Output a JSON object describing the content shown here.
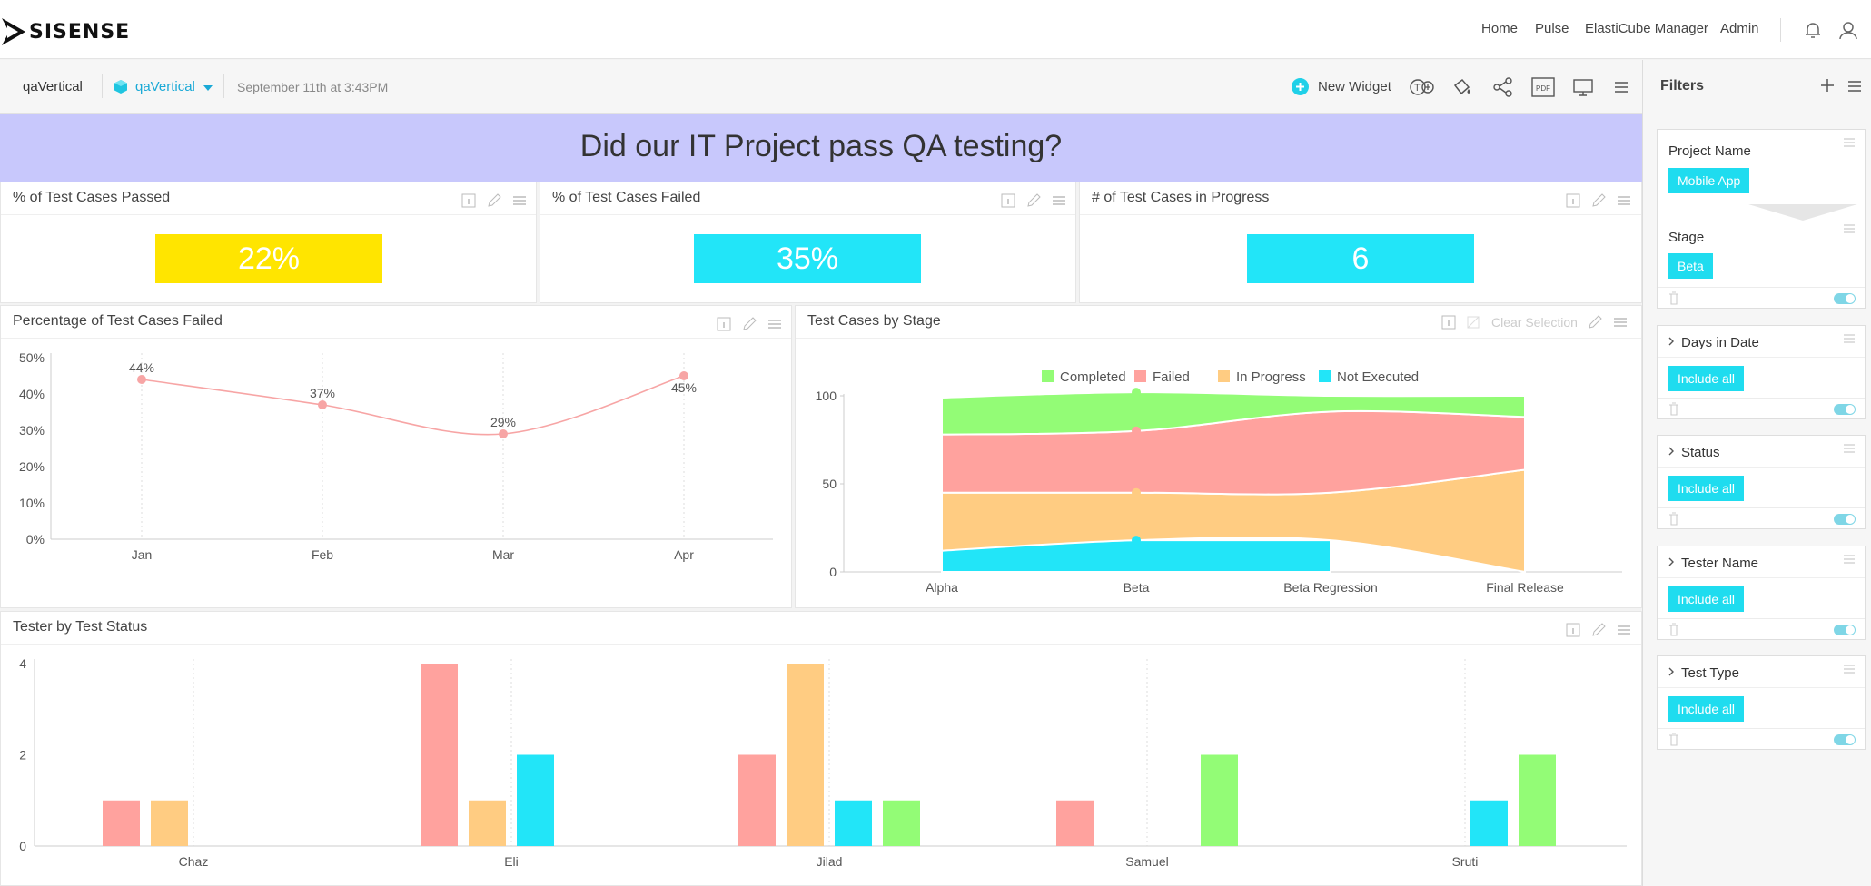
{
  "brand": {
    "name": "SISENSE"
  },
  "nav": {
    "items": [
      "Home",
      "Pulse",
      "ElastiCube Manager",
      "Admin"
    ]
  },
  "dashboard": {
    "name": "qaVertical",
    "datasource": "qaVertical",
    "timestamp": "September 11th at 3:43PM",
    "new_widget_label": "New Widget",
    "banner_title": "Did our IT Project pass QA testing?"
  },
  "kpis": [
    {
      "title": "% of Test Cases Passed",
      "value": "22%",
      "color": "#ffe500"
    },
    {
      "title": "% of Test Cases Failed",
      "value": "35%",
      "color": "#22e5f8"
    },
    {
      "title": "# of Test Cases in Progress",
      "value": "6",
      "color": "#22e5f8"
    }
  ],
  "line_widget": {
    "title": "Percentage of Test Cases Failed"
  },
  "area_widget": {
    "title": "Test Cases by Stage",
    "clear_selection_label": "Clear Selection"
  },
  "bar_widget": {
    "title": "Tester by Test Status"
  },
  "chart_data": [
    {
      "type": "line",
      "title": "Percentage of Test Cases Failed",
      "categories": [
        "Jan",
        "Feb",
        "Mar",
        "Apr"
      ],
      "values": [
        44,
        37,
        29,
        45
      ],
      "data_labels": [
        "44%",
        "37%",
        "29%",
        "45%"
      ],
      "y_ticks": [
        "0%",
        "10%",
        "20%",
        "30%",
        "40%",
        "50%"
      ],
      "ylim": [
        0,
        50
      ],
      "color": "#f7a5a5"
    },
    {
      "type": "area",
      "title": "Test Cases by Stage",
      "categories": [
        "Alpha",
        "Beta",
        "Beta Regression",
        "Final Release"
      ],
      "stacked": true,
      "ylim": [
        0,
        100
      ],
      "y_ticks": [
        "0",
        "50",
        "100"
      ],
      "legend_position": "top",
      "series": [
        {
          "name": "Completed",
          "color": "#93fc76",
          "values": [
            21,
            22,
            9,
            12
          ]
        },
        {
          "name": "Failed",
          "color": "#ffa29e",
          "values": [
            33,
            35,
            46,
            30
          ]
        },
        {
          "name": "In Progress",
          "color": "#ffcc82",
          "values": [
            33,
            27,
            27,
            58
          ]
        },
        {
          "name": "Not Executed",
          "color": "#22e5f8",
          "values": [
            12,
            18,
            18,
            0
          ]
        }
      ]
    },
    {
      "type": "bar",
      "title": "Tester by Test Status",
      "categories": [
        "Chaz",
        "Eli",
        "Jilad",
        "Samuel",
        "Sruti"
      ],
      "ylim": [
        0,
        4
      ],
      "y_ticks": [
        "0",
        "2",
        "4"
      ],
      "series": [
        {
          "color": "#ffa29e",
          "values": [
            1,
            4,
            2,
            1,
            0
          ]
        },
        {
          "color": "#ffcc82",
          "values": [
            1,
            1,
            4,
            0,
            0
          ]
        },
        {
          "color": "#22e5f8",
          "values": [
            0,
            2,
            1,
            0,
            1
          ]
        },
        {
          "color": "#93fc76",
          "values": [
            0,
            0,
            1,
            2,
            2
          ]
        }
      ]
    }
  ],
  "filters": {
    "title": "Filters",
    "items": [
      {
        "name": "Project Name",
        "value": "Mobile App"
      },
      {
        "name": "Stage",
        "value": "Beta"
      },
      {
        "name": "Days in Date",
        "value": "Include all"
      },
      {
        "name": "Status",
        "value": "Include all"
      },
      {
        "name": "Tester Name",
        "value": "Include all"
      },
      {
        "name": "Test Type",
        "value": "Include all"
      }
    ]
  }
}
